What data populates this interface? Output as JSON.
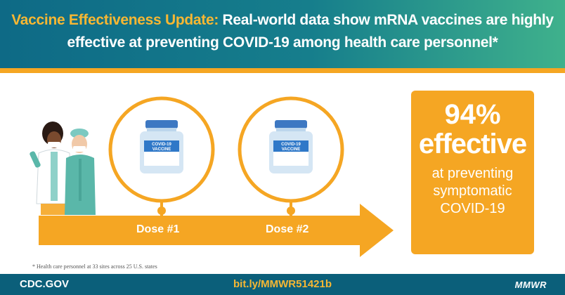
{
  "header": {
    "title_highlight": "Vaccine Effectiveness Update:",
    "title_line1_rest": " Real-world data show mRNA vaccines are highly",
    "title_line2": "effective at preventing COVID-19 among health care personnel*"
  },
  "doses": [
    {
      "label": "Dose #1",
      "vial_label": "COVID-19 VACCINE"
    },
    {
      "label": "Dose #2",
      "vial_label": "COVID-19 VACCINE"
    }
  ],
  "stat": {
    "percent": "94%",
    "word": "effective",
    "line1": "at preventing",
    "line2": "symptomatic",
    "line3": "COVID-19"
  },
  "footnote": "* Health care personnel at 33 sites across 25 U.S. states",
  "footer": {
    "left": "CDC.GOV",
    "center": "bit.ly/MMWR51421b",
    "right": "MMWR"
  },
  "icons": [
    "healthcare-workers-illustration",
    "vaccine-vial-icon",
    "timeline-arrow"
  ],
  "colors": {
    "header_start": "#0e6a86",
    "header_end": "#3fb18c",
    "accent": "#f5a623",
    "highlight_text": "#f7b733",
    "footer": "#0b5f7a"
  }
}
